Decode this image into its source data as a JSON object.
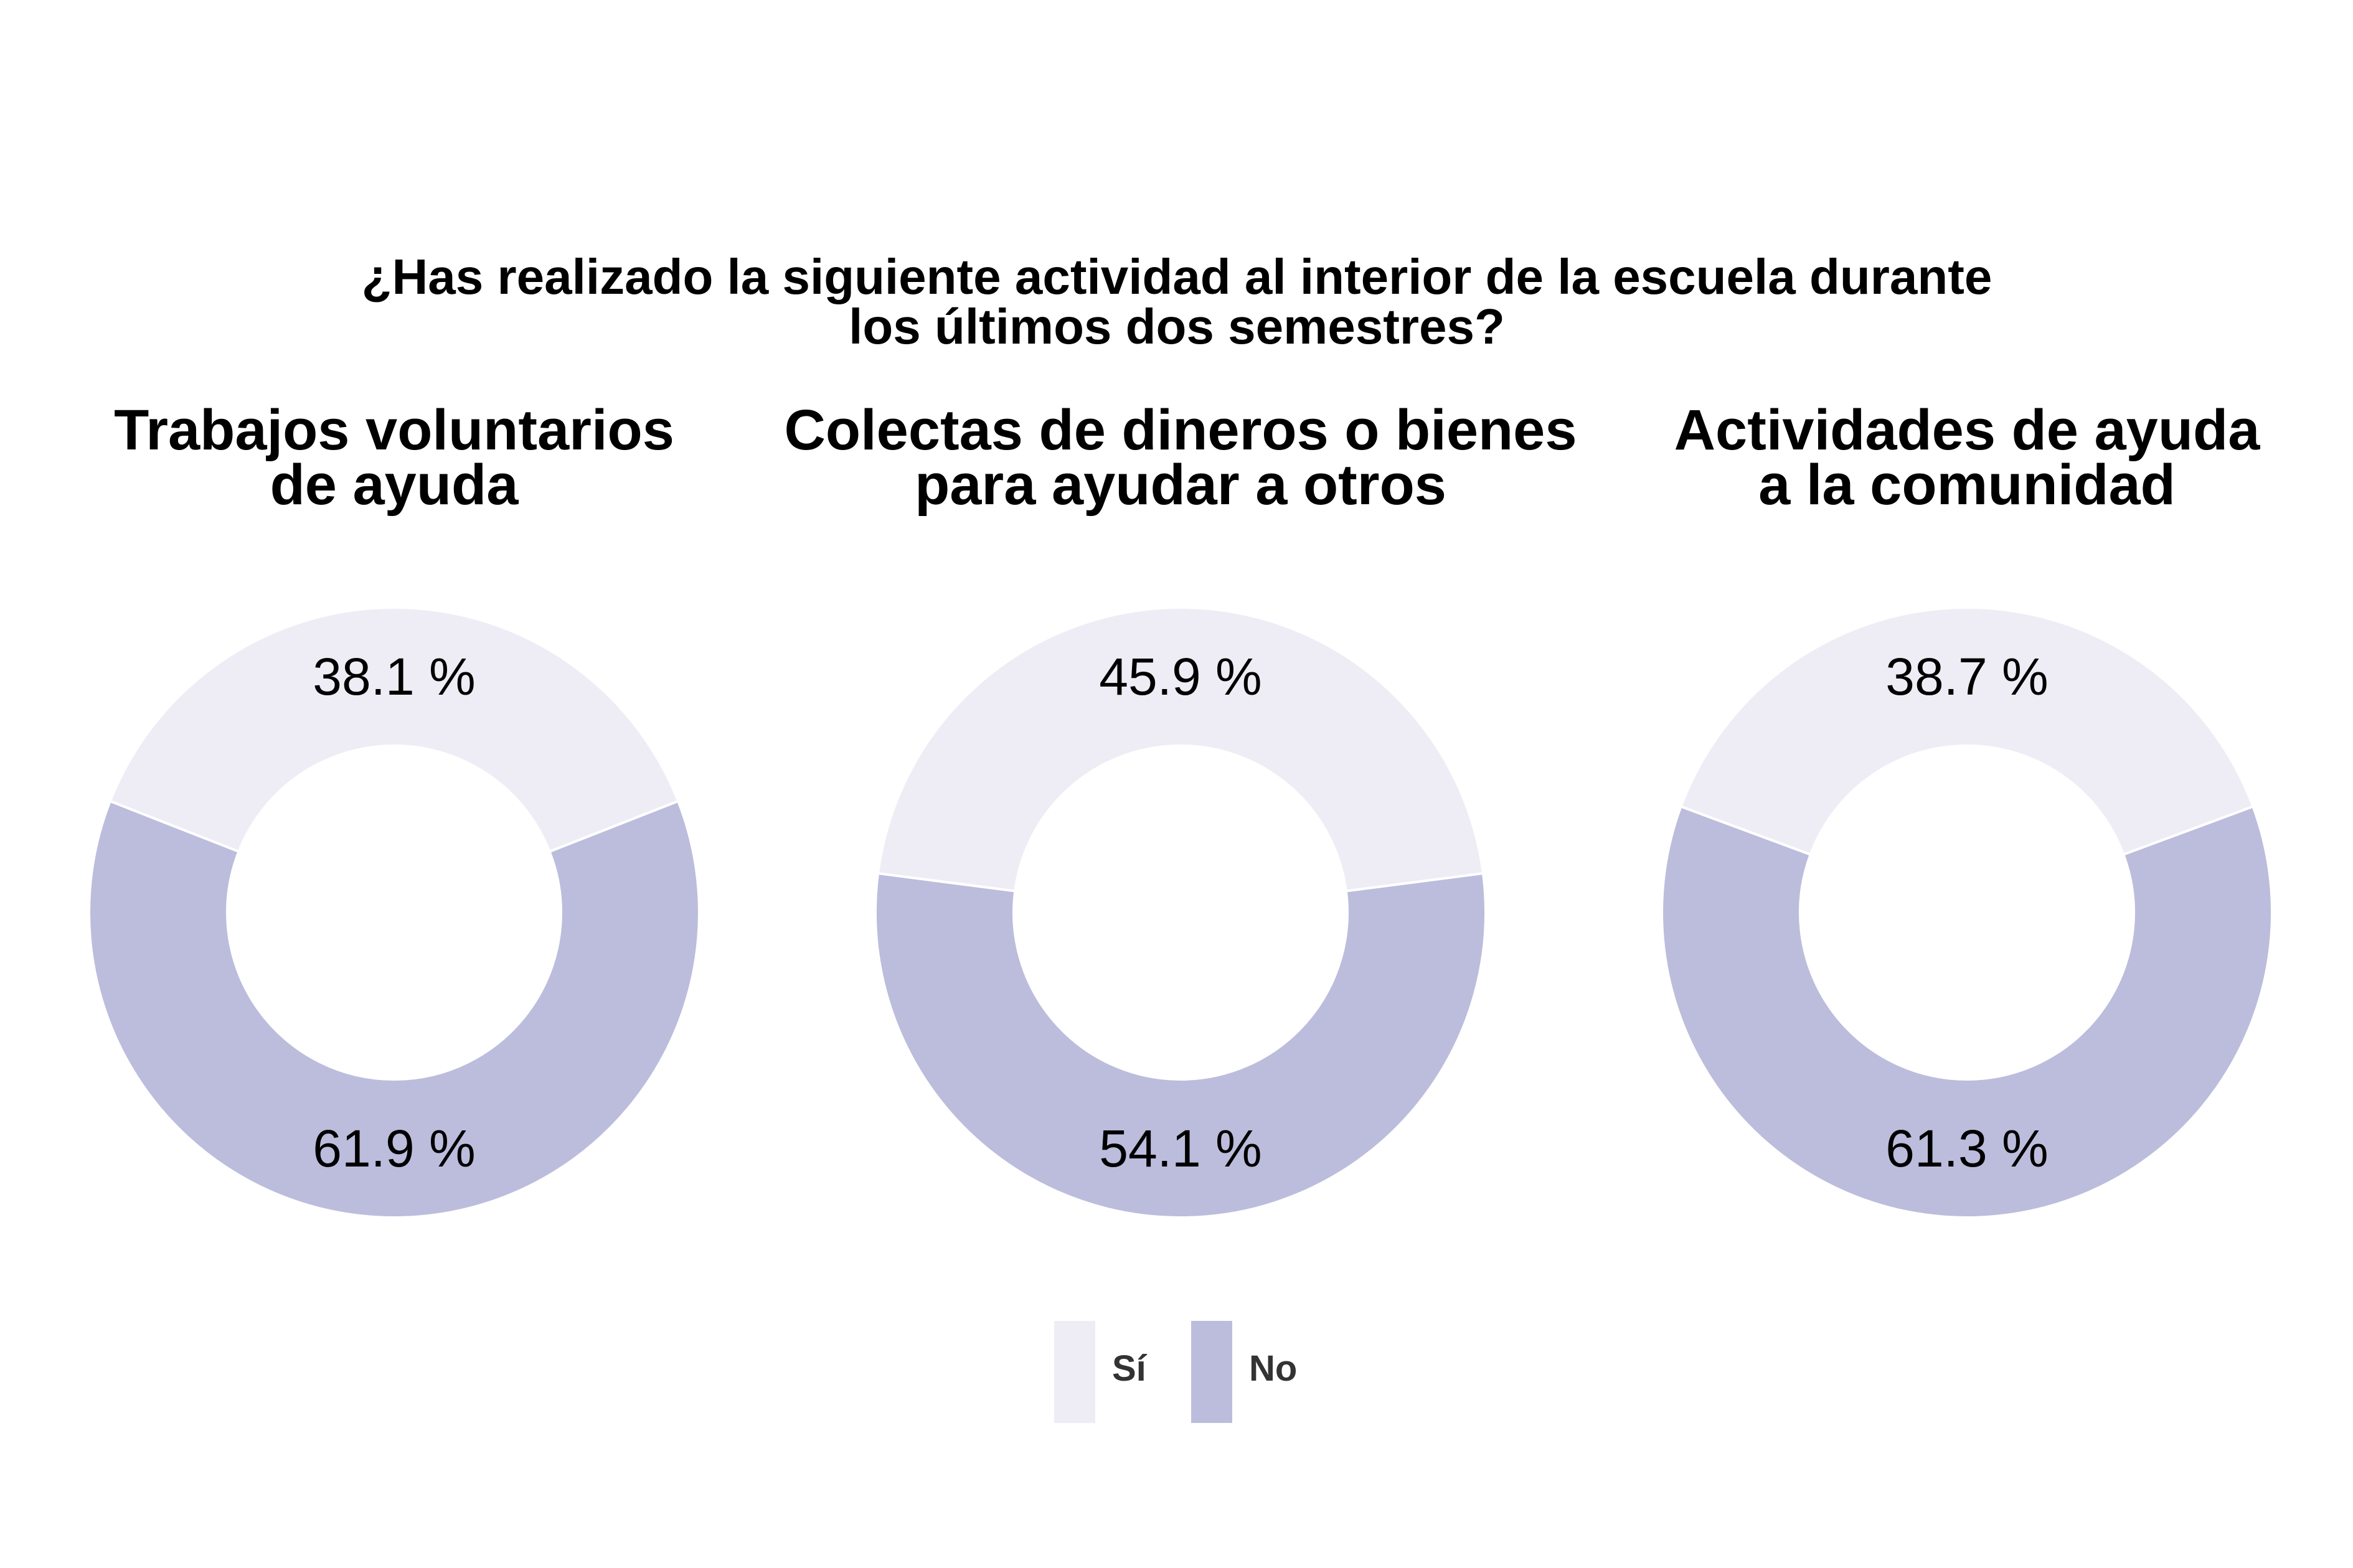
{
  "chart_data": {
    "type": "pie",
    "subtype": "donut",
    "title_lines": [
      "¿Has realizado la siguiente actividad al interior de la escuela durante",
      "los últimos dos semestres?"
    ],
    "categories": [
      "Sí",
      "No"
    ],
    "colors": {
      "Sí": "#EEEDF5",
      "No": "#BCBDDC"
    },
    "legend": {
      "position": "bottom",
      "labels": [
        "Sí",
        "No"
      ]
    },
    "charts": [
      {
        "title_lines": [
          "Trabajos voluntarios",
          "de ayuda"
        ],
        "values": [
          38.1,
          61.9
        ],
        "labels": [
          "38.1 %",
          "61.9 %"
        ]
      },
      {
        "title_lines": [
          "Colectas de dineros o bienes",
          "para ayudar a otros"
        ],
        "values": [
          45.9,
          54.1
        ],
        "labels": [
          "45.9 %",
          "54.1 %"
        ]
      },
      {
        "title_lines": [
          "Actividades de ayuda",
          "a la comunidad"
        ],
        "values": [
          38.7,
          61.3
        ],
        "labels": [
          "38.7 %",
          "61.3 %"
        ]
      }
    ]
  }
}
